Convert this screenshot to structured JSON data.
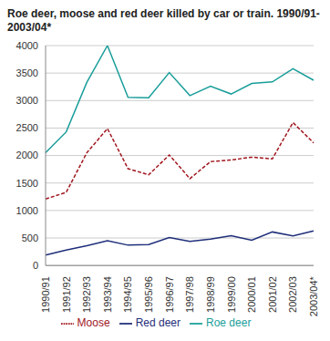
{
  "chart_data": {
    "type": "line",
    "title": "Roe deer, moose and red deer killed by car or train. 1990/91-2003/04*",
    "categories": [
      "1990/91",
      "1991/92",
      "1992/93",
      "1993/94",
      "1994/95",
      "1995/96",
      "1996/97",
      "1997/98",
      "1998/99",
      "1999/00",
      "2000/01",
      "2001/02",
      "2002/03",
      "2003/04*"
    ],
    "series": [
      {
        "name": "Roe deer",
        "color": "#1a9e9a",
        "line_style": "solid",
        "values": [
          2050,
          2430,
          3330,
          4000,
          3060,
          3050,
          3510,
          3090,
          3260,
          3120,
          3310,
          3340,
          3580,
          3370
        ]
      },
      {
        "name": "Moose",
        "color": "#a0161e",
        "line_style": "dashed",
        "values": [
          1210,
          1330,
          2050,
          2490,
          1760,
          1650,
          2010,
          1580,
          1890,
          1920,
          1970,
          1940,
          2600,
          2230
        ]
      },
      {
        "name": "Red deer",
        "color": "#1f2e7a",
        "line_style": "solid",
        "values": [
          190,
          280,
          360,
          450,
          370,
          380,
          510,
          440,
          480,
          540,
          460,
          610,
          540,
          630
        ]
      }
    ],
    "ylim": [
      0,
      4000
    ],
    "yticks": [
      0,
      500,
      1000,
      1500,
      2000,
      2500,
      3000,
      3500,
      4000
    ],
    "grid": true,
    "legend": "bottom"
  }
}
